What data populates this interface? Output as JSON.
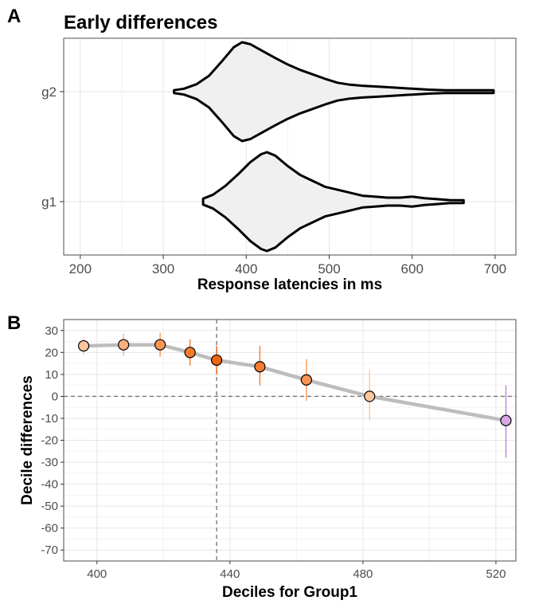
{
  "figure": {
    "panel_a_letter": "A",
    "panel_b_letter": "B"
  },
  "chart_data": [
    {
      "type": "violin",
      "title": "Early differences",
      "xlabel": "Response latencies in ms",
      "ylabel": "",
      "xlim": [
        180,
        725
      ],
      "x_ticks": [
        200,
        300,
        400,
        500,
        600,
        700
      ],
      "categories": [
        "g1",
        "g2"
      ],
      "grid": true,
      "fill_color": "#f0f0f0",
      "outline_color": "#000000",
      "series": [
        {
          "name": "g1",
          "min": 348,
          "max": 662,
          "density_profile": [
            [
              348,
              0.06
            ],
            [
              360,
              0.14
            ],
            [
              375,
              0.32
            ],
            [
              390,
              0.55
            ],
            [
              405,
              0.8
            ],
            [
              418,
              0.96
            ],
            [
              425,
              1.0
            ],
            [
              435,
              0.93
            ],
            [
              450,
              0.72
            ],
            [
              465,
              0.54
            ],
            [
              480,
              0.42
            ],
            [
              495,
              0.3
            ],
            [
              510,
              0.24
            ],
            [
              525,
              0.18
            ],
            [
              540,
              0.12
            ],
            [
              555,
              0.1
            ],
            [
              570,
              0.08
            ],
            [
              585,
              0.08
            ],
            [
              600,
              0.1
            ],
            [
              615,
              0.07
            ],
            [
              630,
              0.05
            ],
            [
              645,
              0.03
            ],
            [
              662,
              0.01
            ]
          ]
        },
        {
          "name": "g2",
          "min": 313,
          "max": 698,
          "density_profile": [
            [
              313,
              0.02
            ],
            [
              325,
              0.06
            ],
            [
              340,
              0.15
            ],
            [
              355,
              0.32
            ],
            [
              370,
              0.6
            ],
            [
              385,
              0.9
            ],
            [
              395,
              1.0
            ],
            [
              405,
              0.96
            ],
            [
              420,
              0.82
            ],
            [
              435,
              0.68
            ],
            [
              450,
              0.55
            ],
            [
              465,
              0.44
            ],
            [
              480,
              0.35
            ],
            [
              495,
              0.26
            ],
            [
              510,
              0.18
            ],
            [
              525,
              0.14
            ],
            [
              540,
              0.12
            ],
            [
              560,
              0.1
            ],
            [
              580,
              0.08
            ],
            [
              600,
              0.06
            ],
            [
              620,
              0.04
            ],
            [
              640,
              0.02
            ],
            [
              660,
              0.01
            ],
            [
              680,
              0.005
            ],
            [
              698,
              0.005
            ]
          ]
        }
      ]
    },
    {
      "type": "line",
      "title": "",
      "xlabel": "Deciles for Group1",
      "ylabel": "Decile differences",
      "xlim": [
        390,
        526
      ],
      "ylim": [
        -75,
        35
      ],
      "x_ticks": [
        400,
        440,
        480,
        520
      ],
      "y_ticks": [
        30,
        20,
        10,
        0,
        -10,
        -20,
        -30,
        -40,
        -50,
        -60,
        -70
      ],
      "reference_lines": {
        "hline": 0,
        "vline": 436
      },
      "line_color": "#bdbdbd",
      "points": [
        {
          "decile": 1,
          "x": 396,
          "y": 23,
          "ci": [
            19,
            27
          ],
          "color": "#fcc5a0"
        },
        {
          "decile": 2,
          "x": 408,
          "y": 23.5,
          "ci": [
            18.5,
            28.5
          ],
          "color": "#fbad7e"
        },
        {
          "decile": 3,
          "x": 419,
          "y": 23.5,
          "ci": [
            18,
            29
          ],
          "color": "#f99656"
        },
        {
          "decile": 4,
          "x": 428,
          "y": 20,
          "ci": [
            14,
            26
          ],
          "color": "#f47c30"
        },
        {
          "decile": 5,
          "x": 436,
          "y": 16.5,
          "ci": [
            10,
            23
          ],
          "color": "#ee6414"
        },
        {
          "decile": 6,
          "x": 449,
          "y": 13.5,
          "ci": [
            5,
            23
          ],
          "color": "#f47c30"
        },
        {
          "decile": 7,
          "x": 463,
          "y": 7.5,
          "ci": [
            -2,
            17
          ],
          "color": "#f99656"
        },
        {
          "decile": 8,
          "x": 482,
          "y": 0,
          "ci": [
            -11,
            12
          ],
          "color": "#fcc5a0"
        },
        {
          "decile": 9,
          "x": 523,
          "y": -11,
          "ci": [
            -28,
            5
          ],
          "color": "#d8a8e6",
          "ci_color": "#c080dd"
        }
      ]
    }
  ]
}
